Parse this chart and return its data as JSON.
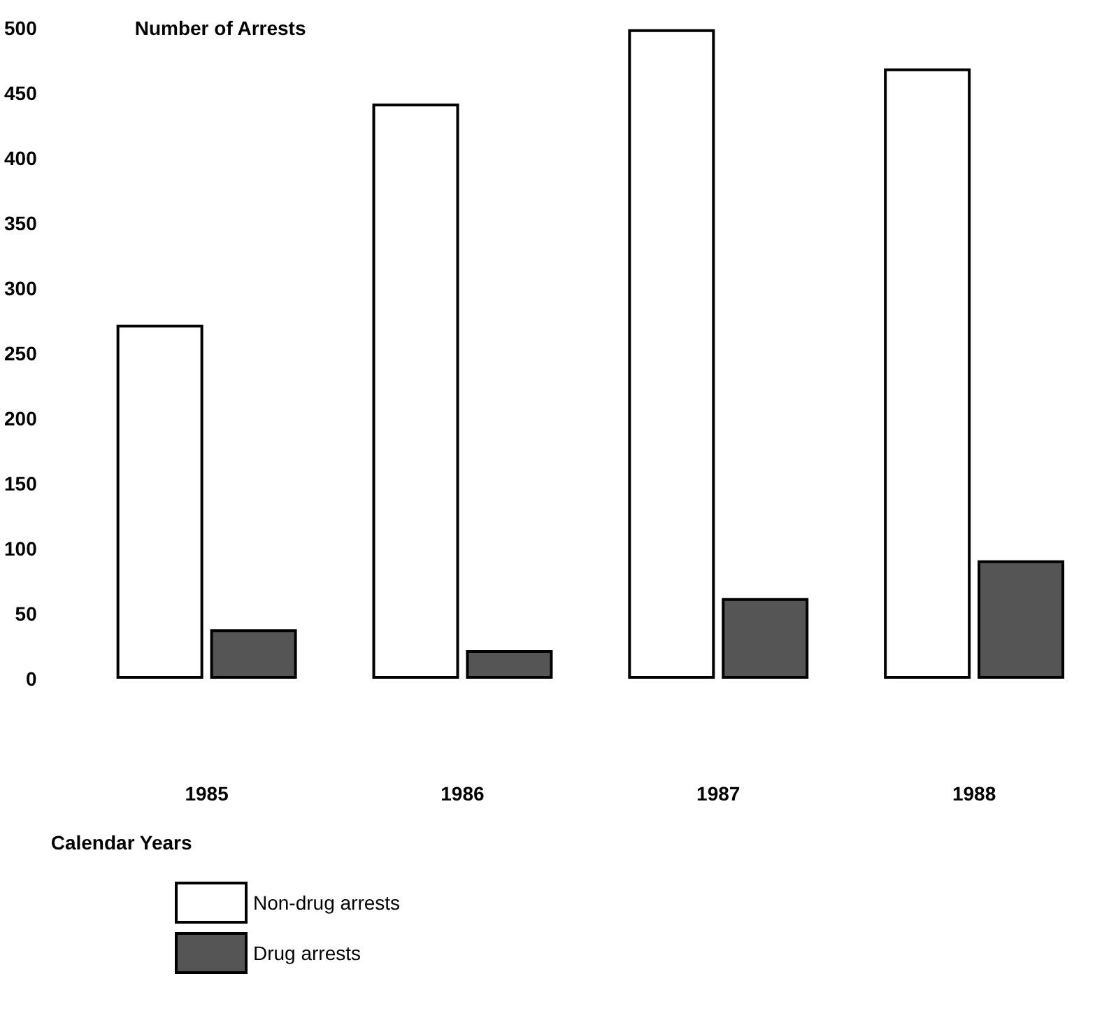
{
  "chart_data": {
    "type": "bar",
    "ylabel": "Number of Arrests",
    "xlabel": "Calendar Years",
    "categories": [
      "1985",
      "1986",
      "1987",
      "1988"
    ],
    "series": [
      {
        "name": "Non-drug arrests",
        "color": "#ffffff",
        "values": [
          272,
          442,
          499,
          469
        ]
      },
      {
        "name": "Drug arrests",
        "color": "#555555",
        "values": [
          38,
          22,
          62,
          91
        ]
      }
    ],
    "ylim": [
      0,
      500
    ],
    "yticks": [
      0,
      50,
      100,
      150,
      200,
      250,
      300,
      350,
      400,
      450,
      500
    ],
    "grid": false,
    "legend": "bottom left"
  }
}
